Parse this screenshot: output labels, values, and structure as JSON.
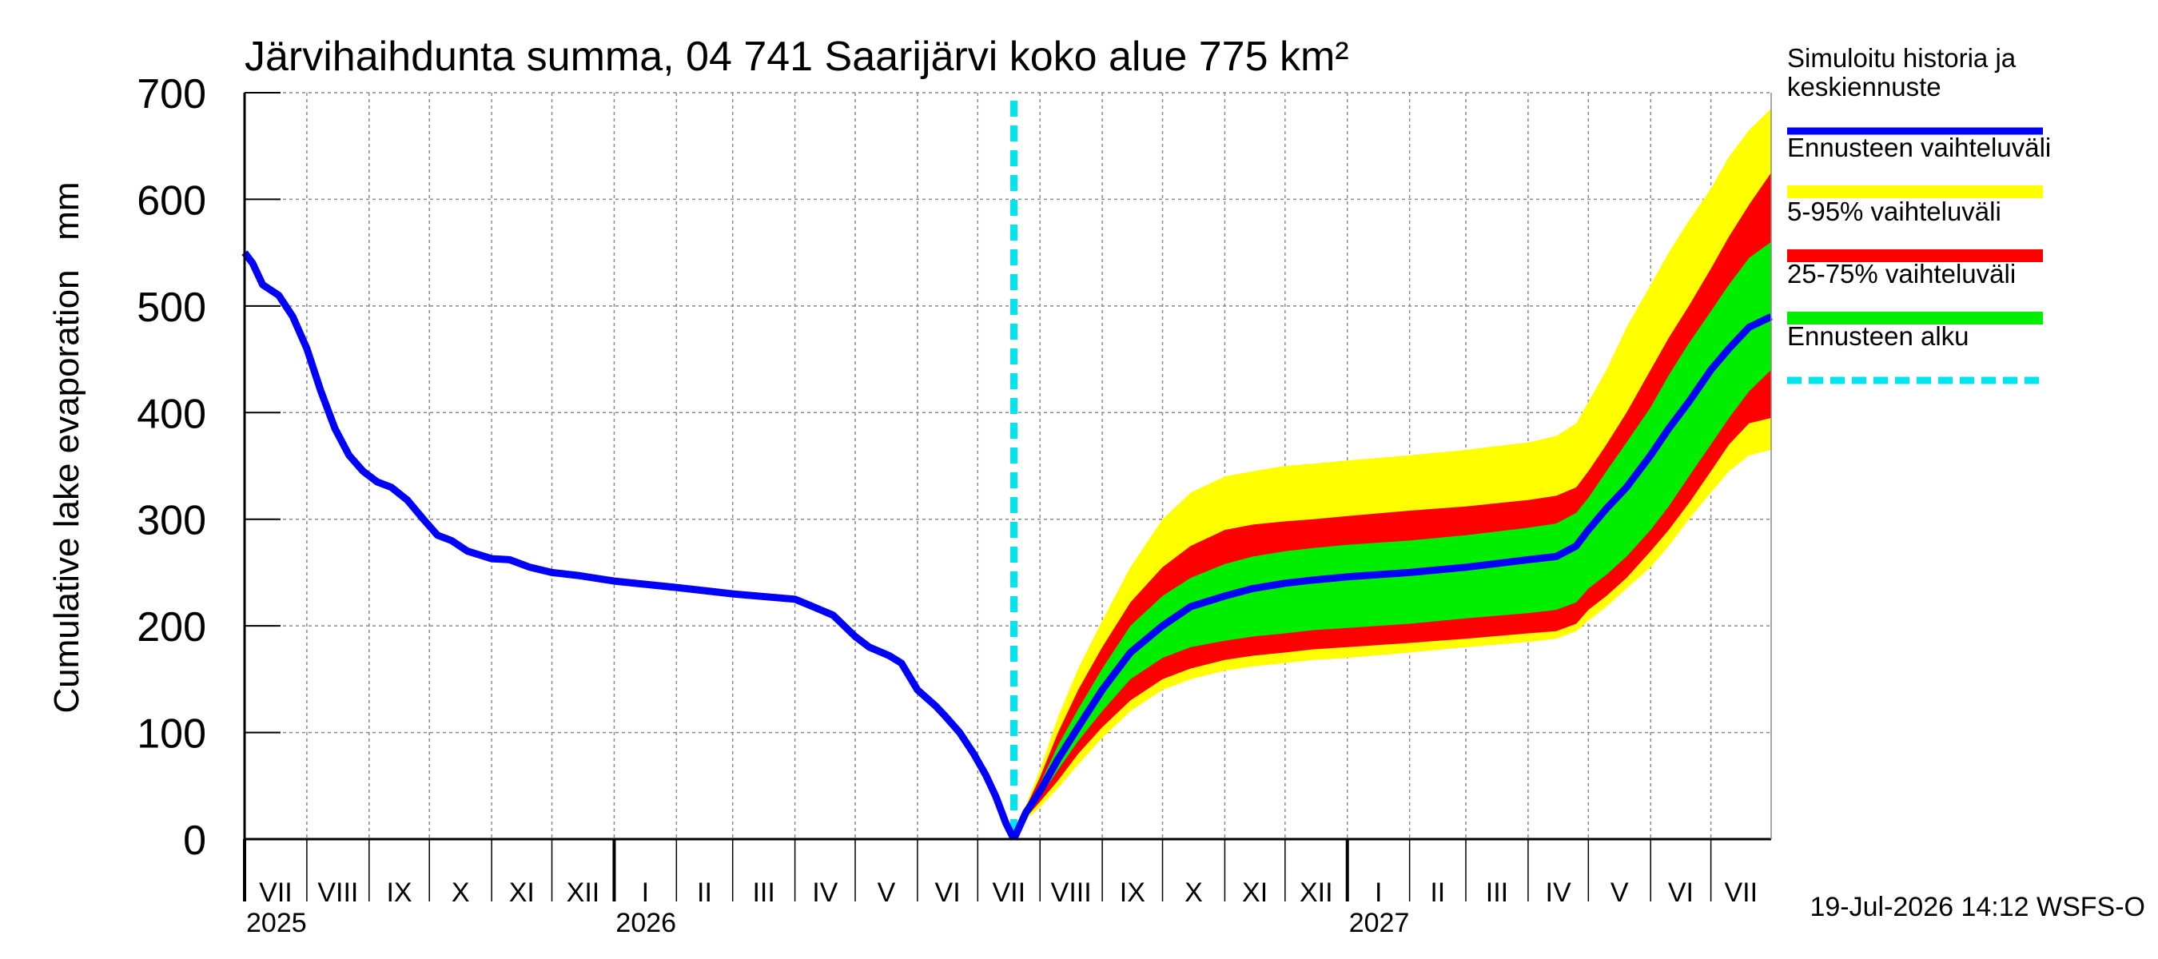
{
  "chart_data": {
    "type": "area",
    "title": "Järvihaihdunta summa, 04 741 Saarijärvi koko alue 775 km²",
    "ylabel": "Cumulative lake evaporation   mm",
    "ylim": [
      0,
      700
    ],
    "yticks": [
      "0",
      "100",
      "200",
      "300",
      "400",
      "500",
      "600",
      "700"
    ],
    "xlim": [
      "2025-07-01",
      "2027-07-31"
    ],
    "grid": true,
    "month_labels": [
      {
        "label": "VII",
        "start": "2025-07-01",
        "end": "2025-08-01"
      },
      {
        "label": "VIII",
        "start": "2025-08-01",
        "end": "2025-09-01"
      },
      {
        "label": "IX",
        "start": "2025-09-01",
        "end": "2025-10-01"
      },
      {
        "label": "X",
        "start": "2025-10-01",
        "end": "2025-11-01"
      },
      {
        "label": "XI",
        "start": "2025-11-01",
        "end": "2025-12-01"
      },
      {
        "label": "XII",
        "start": "2025-12-01",
        "end": "2026-01-01"
      },
      {
        "label": "I",
        "start": "2026-01-01",
        "end": "2026-02-01"
      },
      {
        "label": "II",
        "start": "2026-02-01",
        "end": "2026-03-01"
      },
      {
        "label": "III",
        "start": "2026-03-01",
        "end": "2026-04-01"
      },
      {
        "label": "IV",
        "start": "2026-04-01",
        "end": "2026-05-01"
      },
      {
        "label": "V",
        "start": "2026-05-01",
        "end": "2026-06-01"
      },
      {
        "label": "VI",
        "start": "2026-06-01",
        "end": "2026-07-01"
      },
      {
        "label": "VII",
        "start": "2026-07-01",
        "end": "2026-08-01"
      },
      {
        "label": "VIII",
        "start": "2026-08-01",
        "end": "2026-09-01"
      },
      {
        "label": "IX",
        "start": "2026-09-01",
        "end": "2026-10-01"
      },
      {
        "label": "X",
        "start": "2026-10-01",
        "end": "2026-11-01"
      },
      {
        "label": "XI",
        "start": "2026-11-01",
        "end": "2026-12-01"
      },
      {
        "label": "XII",
        "start": "2026-12-01",
        "end": "2027-01-01"
      },
      {
        "label": "I",
        "start": "2027-01-01",
        "end": "2027-02-01"
      },
      {
        "label": "II",
        "start": "2027-02-01",
        "end": "2027-03-01"
      },
      {
        "label": "III",
        "start": "2027-03-01",
        "end": "2027-04-01"
      },
      {
        "label": "IV",
        "start": "2027-04-01",
        "end": "2027-05-01"
      },
      {
        "label": "V",
        "start": "2027-05-01",
        "end": "2027-06-01"
      },
      {
        "label": "VI",
        "start": "2027-06-01",
        "end": "2027-07-01"
      },
      {
        "label": "VII",
        "start": "2027-07-01",
        "end": "2027-07-31"
      }
    ],
    "year_labels": [
      {
        "label": "2025",
        "date": "2025-07-01"
      },
      {
        "label": "2026",
        "date": "2026-01-01"
      },
      {
        "label": "2027",
        "date": "2027-01-01"
      }
    ],
    "forecast_start": "2026-07-19",
    "history": {
      "name": "Simuloitu historia ja keskiennuste",
      "color": "#0000ff",
      "x": [
        "2025-07-01",
        "2025-07-05",
        "2025-07-10",
        "2025-07-18",
        "2025-07-25",
        "2025-08-01",
        "2025-08-08",
        "2025-08-15",
        "2025-08-22",
        "2025-08-29",
        "2025-09-05",
        "2025-09-12",
        "2025-09-20",
        "2025-09-28",
        "2025-10-05",
        "2025-10-12",
        "2025-10-20",
        "2025-11-01",
        "2025-11-10",
        "2025-11-20",
        "2025-12-01",
        "2025-12-15",
        "2026-01-01",
        "2026-02-01",
        "2026-03-01",
        "2026-04-01",
        "2026-04-10",
        "2026-04-20",
        "2026-05-01",
        "2026-05-08",
        "2026-05-18",
        "2026-05-24",
        "2026-06-01",
        "2026-06-10",
        "2026-06-15",
        "2026-06-22",
        "2026-06-29",
        "2026-07-05",
        "2026-07-10",
        "2026-07-15",
        "2026-07-19"
      ],
      "y": [
        550,
        540,
        520,
        510,
        490,
        460,
        420,
        385,
        360,
        345,
        335,
        330,
        318,
        300,
        285,
        280,
        270,
        263,
        262,
        255,
        250,
        247,
        242,
        236,
        230,
        225,
        218,
        210,
        190,
        180,
        172,
        165,
        140,
        125,
        115,
        100,
        80,
        60,
        40,
        15,
        0
      ]
    },
    "forecast": {
      "x": [
        "2026-07-19",
        "2026-07-25",
        "2026-08-01",
        "2026-08-10",
        "2026-08-20",
        "2026-09-01",
        "2026-09-15",
        "2026-10-01",
        "2026-10-15",
        "2026-11-01",
        "2026-11-15",
        "2026-12-01",
        "2026-12-15",
        "2027-01-01",
        "2027-02-01",
        "2027-03-01",
        "2027-04-01",
        "2027-04-15",
        "2027-04-25",
        "2027-05-01",
        "2027-05-10",
        "2027-05-20",
        "2027-06-01",
        "2027-06-10",
        "2027-06-20",
        "2027-07-01",
        "2027-07-10",
        "2027-07-20",
        "2027-07-31"
      ],
      "median": [
        0,
        25,
        45,
        75,
        105,
        140,
        175,
        200,
        218,
        228,
        235,
        240,
        243,
        246,
        250,
        255,
        262,
        265,
        275,
        290,
        310,
        330,
        360,
        385,
        410,
        440,
        460,
        480,
        490
      ],
      "p25": [
        0,
        23,
        40,
        65,
        92,
        120,
        150,
        170,
        180,
        186,
        190,
        193,
        196,
        198,
        202,
        207,
        212,
        215,
        222,
        235,
        248,
        265,
        290,
        312,
        340,
        370,
        395,
        420,
        440
      ],
      "p75": [
        0,
        28,
        52,
        88,
        122,
        160,
        200,
        228,
        245,
        258,
        265,
        270,
        273,
        276,
        280,
        285,
        292,
        296,
        306,
        320,
        345,
        372,
        405,
        435,
        465,
        495,
        520,
        545,
        560
      ],
      "p5": [
        0,
        20,
        35,
        55,
        80,
        105,
        130,
        150,
        160,
        168,
        172,
        175,
        178,
        180,
        184,
        188,
        193,
        195,
        202,
        215,
        228,
        245,
        270,
        290,
        315,
        345,
        370,
        390,
        395
      ],
      "p95": [
        0,
        30,
        58,
        100,
        140,
        180,
        222,
        255,
        275,
        290,
        295,
        298,
        300,
        303,
        308,
        312,
        318,
        322,
        330,
        345,
        370,
        400,
        440,
        470,
        500,
        535,
        565,
        595,
        625
      ],
      "min": [
        0,
        18,
        30,
        48,
        70,
        95,
        120,
        140,
        150,
        158,
        162,
        165,
        168,
        170,
        175,
        180,
        185,
        188,
        195,
        205,
        218,
        235,
        255,
        275,
        300,
        325,
        345,
        360,
        365
      ],
      "max": [
        0,
        32,
        65,
        115,
        160,
        205,
        255,
        300,
        325,
        340,
        345,
        350,
        352,
        355,
        360,
        365,
        372,
        378,
        390,
        410,
        440,
        480,
        520,
        550,
        580,
        610,
        640,
        665,
        685
      ]
    },
    "legend": [
      {
        "label": "Simuloitu historia ja keskiennuste",
        "color": "#0000ff",
        "style": "line"
      },
      {
        "label": "Ennusteen vaihteluväli",
        "color": "#ffff00",
        "style": "band"
      },
      {
        "label": "5-95% vaihteluväli",
        "color": "#ff0000",
        "style": "band"
      },
      {
        "label": "25-75% vaihteluväli",
        "color": "#00ee00",
        "style": "band"
      },
      {
        "label": "Ennusteen alku",
        "color": "#00e5ee",
        "style": "dashed"
      }
    ],
    "legend_position": "right",
    "footer": "19-Jul-2026 14:12 WSFS-O"
  }
}
